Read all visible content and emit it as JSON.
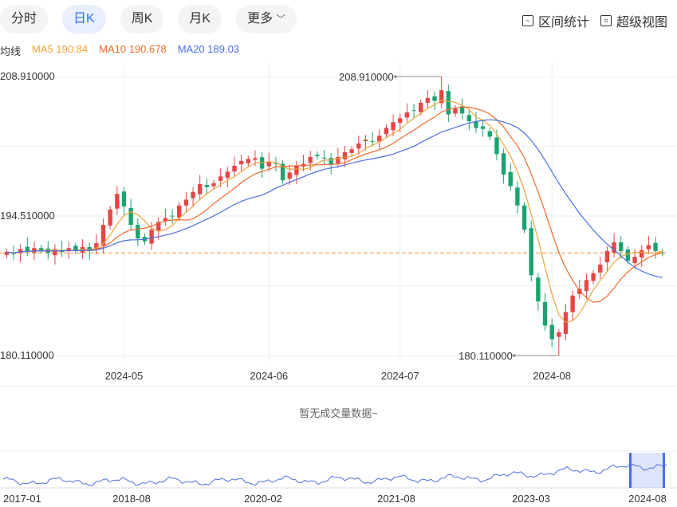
{
  "tabs": [
    {
      "label": "分时",
      "active": false
    },
    {
      "label": "日K",
      "active": true
    },
    {
      "label": "周K",
      "active": false
    },
    {
      "label": "月K",
      "active": false
    },
    {
      "label": "更多",
      "active": false
    }
  ],
  "toolbar": {
    "range_stats_label": "区间统计",
    "range_stats_icon": "range-stats-icon",
    "super_view_label": "超级视图",
    "super_view_icon": "fullscreen-icon"
  },
  "ma": {
    "label": "均线",
    "ma5": "MA5 190.84",
    "ma10": "MA10 190.678",
    "ma20": "MA20 189.03",
    "colors": {
      "ma5": "#f2a33a",
      "ma10": "#ee6b2a",
      "ma20": "#4a6fe3"
    }
  },
  "volume_note": "暂无成交量数据~",
  "colors": {
    "up": "#e84545",
    "down": "#1aa36f",
    "reference": "#f2903a"
  },
  "chart_data": {
    "type": "candlestick",
    "y_ticks": [
      "208.910000",
      "194.510000",
      "180.110000"
    ],
    "ylim": [
      180.11,
      208.91
    ],
    "x_ticks": [
      {
        "label": "2024-05",
        "index": 17
      },
      {
        "label": "2024-06",
        "index": 38
      },
      {
        "label": "2024-07",
        "index": 57
      },
      {
        "label": "2024-08",
        "index": 79
      }
    ],
    "max_marker": {
      "label": "208.910000",
      "index": 63,
      "value": 208.91
    },
    "min_marker": {
      "label": "180.110000",
      "index": 80,
      "value": 180.11
    },
    "reference_price": 190.7,
    "closes": [
      190.8,
      190.6,
      191.1,
      190.9,
      191.2,
      191.0,
      190.7,
      191.1,
      190.8,
      191.2,
      190.9,
      191.3,
      190.9,
      191.7,
      193.6,
      195.2,
      196.8,
      195.5,
      193.6,
      192.2,
      191.9,
      193.1,
      193.9,
      194.3,
      194.5,
      195.6,
      196.2,
      197.0,
      197.8,
      197.5,
      197.9,
      198.6,
      199.1,
      199.7,
      200.2,
      200.4,
      200.5,
      199.4,
      200.1,
      199.9,
      198.2,
      199.0,
      199.7,
      199.9,
      200.6,
      200.7,
      200.5,
      199.8,
      200.6,
      201.1,
      201.4,
      202.0,
      202.4,
      202.2,
      202.8,
      203.6,
      204.2,
      204.6,
      205.2,
      205.4,
      206.2,
      206.7,
      206.4,
      207.5,
      205.0,
      205.6,
      205.1,
      204.3,
      203.6,
      203.5,
      202.7,
      200.9,
      198.8,
      197.6,
      195.6,
      193.1,
      188.4,
      185.7,
      183.2,
      181.8,
      182.5,
      184.6,
      186.3,
      187.0,
      187.9,
      188.6,
      189.5,
      190.9,
      191.8,
      190.9,
      189.9,
      190.3,
      191.0,
      191.5,
      190.9,
      190.7
    ],
    "ma5": [
      190.84
    ],
    "ma10": [
      190.678
    ],
    "ma20": [
      189.03
    ],
    "overview": {
      "x_ticks": [
        "2017-01",
        "2018-08",
        "2020-02",
        "2021-08",
        "2023-03",
        "2024-08"
      ]
    }
  }
}
